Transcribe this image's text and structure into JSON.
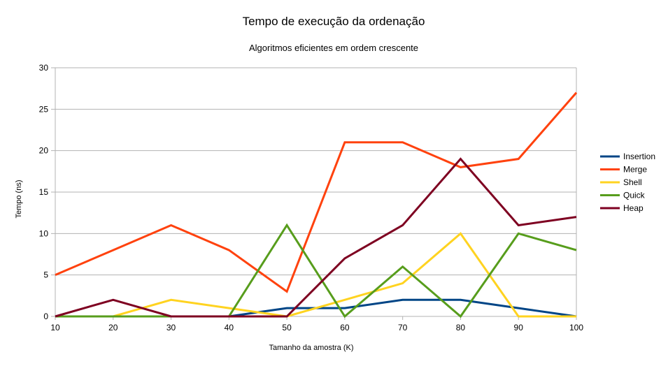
{
  "chart_data": {
    "type": "line",
    "title": "Tempo de execução da ordenação",
    "subtitle": "Algoritmos eficientes em ordem crescente",
    "xlabel": "Tamanho da amostra (K)",
    "ylabel": "Tempo (ns)",
    "x": [
      10,
      20,
      30,
      40,
      50,
      60,
      70,
      80,
      90,
      100
    ],
    "x_tick_labels": [
      "10",
      "20",
      "30",
      "40",
      "50",
      "60",
      "70",
      "80",
      "90",
      "100"
    ],
    "ylim": [
      0,
      30
    ],
    "y_tick_labels": [
      "0",
      "5",
      "10",
      "15",
      "20",
      "25",
      "30"
    ],
    "grid": "horizontal",
    "legend_position": "right",
    "series": [
      {
        "name": "Insertion",
        "color": "#004586",
        "values": [
          0,
          0,
          0,
          0,
          1,
          1,
          2,
          2,
          1,
          0
        ]
      },
      {
        "name": "Merge",
        "color": "#ff420e",
        "values": [
          5,
          8,
          11,
          8,
          3,
          21,
          21,
          18,
          19,
          27
        ]
      },
      {
        "name": "Shell",
        "color": "#ffd320",
        "values": [
          0,
          0,
          2,
          1,
          0,
          2,
          4,
          10,
          0,
          0
        ]
      },
      {
        "name": "Quick",
        "color": "#579d1c",
        "values": [
          0,
          0,
          0,
          0,
          11,
          0,
          6,
          0,
          10,
          8
        ]
      },
      {
        "name": "Heap",
        "color": "#7e0021",
        "values": [
          0,
          2,
          0,
          0,
          0,
          7,
          11,
          19,
          11,
          12
        ]
      }
    ]
  }
}
